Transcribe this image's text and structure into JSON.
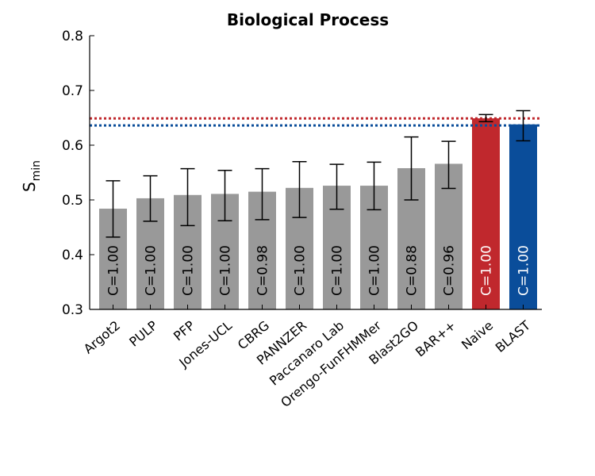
{
  "chart_data": {
    "type": "bar",
    "title": "Biological Process",
    "ylabel_main": "S",
    "ylabel_sub": "min",
    "xlabel": "",
    "ylim": [
      0.3,
      0.8
    ],
    "yticks": [
      "0.3",
      "0.4",
      "0.5",
      "0.6",
      "0.7",
      "0.8"
    ],
    "categories": [
      "Argot2",
      "PULP",
      "PFP",
      "Jones-UCL",
      "CBRG",
      "PANNZER",
      "Paccanaro Lab",
      "Orengo-FunFHMMer",
      "Blast2GO",
      "BAR++",
      "Naive",
      "BLAST"
    ],
    "values": [
      0.484,
      0.503,
      0.509,
      0.511,
      0.515,
      0.522,
      0.526,
      0.526,
      0.558,
      0.566,
      0.649,
      0.638
    ],
    "err_low": [
      0.432,
      0.461,
      0.453,
      0.462,
      0.464,
      0.468,
      0.483,
      0.482,
      0.5,
      0.521,
      0.643,
      0.608
    ],
    "err_high": [
      0.535,
      0.544,
      0.557,
      0.554,
      0.557,
      0.57,
      0.565,
      0.569,
      0.615,
      0.607,
      0.656,
      0.663
    ],
    "bar_labels": [
      "C=1.00",
      "C=1.00",
      "C=1.00",
      "C=1.00",
      "C=0.98",
      "C=1.00",
      "C=1.00",
      "C=1.00",
      "C=0.88",
      "C=0.96",
      "C=1.00",
      "C=1.00"
    ],
    "colors": {
      "default": "#999999",
      "Naive": "#c0282d",
      "BLAST": "#0a4d9a",
      "label_default": "#000000",
      "label_highlight": "#ffffff"
    },
    "reference_lines": [
      {
        "value": 0.649,
        "color": "#c0282d",
        "style": "dotted"
      },
      {
        "value": 0.636,
        "color": "#0a4d9a",
        "style": "dotted"
      }
    ],
    "grid": false
  }
}
